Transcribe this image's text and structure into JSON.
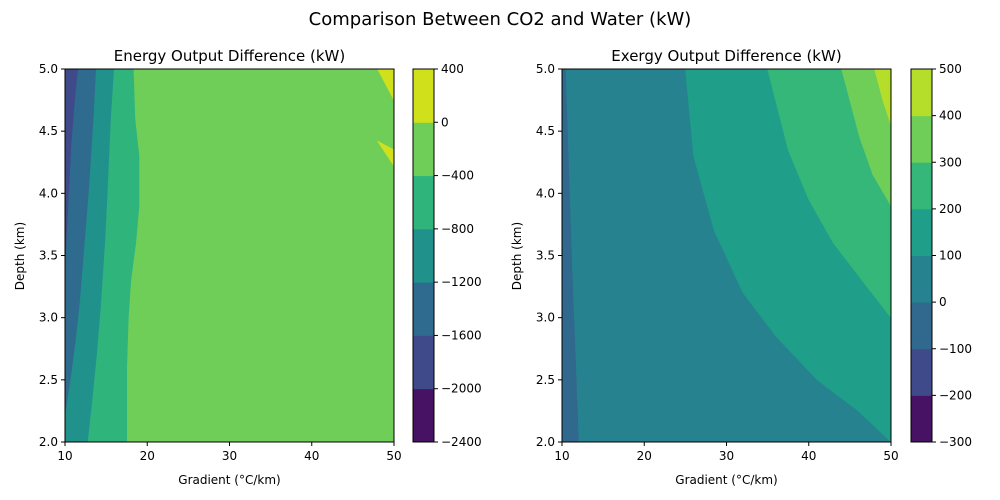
{
  "figure": {
    "suptitle": "Comparison Between CO2 and Water (kW)"
  },
  "chart_data": [
    {
      "type": "contour",
      "title": "Energy Output Difference (kW)",
      "xlabel": "Gradient (°C/km)",
      "ylabel": "Depth (km)",
      "xlim": [
        10,
        50
      ],
      "ylim": [
        2.0,
        5.0
      ],
      "x_ticks": [
        10,
        20,
        30,
        40,
        50
      ],
      "y_ticks": [
        "2.0",
        "2.5",
        "3.0",
        "3.5",
        "4.0",
        "4.5",
        "5.0"
      ],
      "colorbar": {
        "levels": [
          -2400,
          -2000,
          -1600,
          -1200,
          -800,
          -400,
          0,
          400
        ],
        "tick_labels": [
          "−2400",
          "−2000",
          "−1600",
          "−1200",
          "−800",
          "−400",
          "0",
          "400"
        ],
        "colors": [
          "#471164",
          "#3e4a89",
          "#2e6b8e",
          "#21918c",
          "#2fb47c",
          "#6ece58",
          "#d0e11c"
        ]
      },
      "regions": [
        {
          "range": [
            -2000,
            -1600
          ],
          "boundary": [
            [
              10,
              5.0
            ],
            [
              11.6,
              5.0
            ],
            [
              11.3,
              4.8
            ],
            [
              10.8,
              4.4
            ],
            [
              10.5,
              4.0
            ],
            [
              10.2,
              3.6
            ],
            [
              10,
              3.3
            ]
          ]
        },
        {
          "range": [
            -1600,
            -1200
          ],
          "boundary": [
            [
              11.6,
              5.0
            ],
            [
              13.8,
              5.0
            ],
            [
              13.5,
              4.6
            ],
            [
              12.9,
              4.0
            ],
            [
              12.3,
              3.5
            ],
            [
              11.8,
              3.1
            ],
            [
              11.3,
              2.8
            ],
            [
              10.7,
              2.5
            ],
            [
              10,
              2.2
            ],
            [
              10,
              3.3
            ],
            [
              10.2,
              3.6
            ],
            [
              10.5,
              4.0
            ],
            [
              10.8,
              4.4
            ],
            [
              11.3,
              4.8
            ]
          ]
        },
        {
          "range": [
            -1200,
            -800
          ],
          "boundary": [
            [
              13.8,
              5.0
            ],
            [
              16.0,
              5.0
            ],
            [
              15.6,
              4.6
            ],
            [
              15.2,
              4.0
            ],
            [
              14.9,
              3.6
            ],
            [
              14.4,
              3.1
            ],
            [
              13.9,
              2.7
            ],
            [
              13.3,
              2.3
            ],
            [
              12.8,
              2.0
            ],
            [
              10,
              2.0
            ],
            [
              10,
              2.2
            ],
            [
              10.7,
              2.5
            ],
            [
              11.3,
              2.8
            ],
            [
              11.8,
              3.1
            ],
            [
              12.3,
              3.5
            ],
            [
              12.9,
              4.0
            ],
            [
              13.5,
              4.6
            ]
          ]
        },
        {
          "range": [
            -800,
            -400
          ],
          "boundary": [
            [
              16.0,
              5.0
            ],
            [
              18.3,
              5.0
            ],
            [
              18.5,
              4.6
            ],
            [
              19.0,
              4.3
            ],
            [
              19.0,
              3.9
            ],
            [
              18.6,
              3.6
            ],
            [
              18.0,
              3.3
            ],
            [
              17.7,
              3.0
            ],
            [
              17.5,
              2.6
            ],
            [
              17.5,
              2.0
            ],
            [
              12.8,
              2.0
            ],
            [
              13.3,
              2.3
            ],
            [
              13.9,
              2.7
            ],
            [
              14.4,
              3.1
            ],
            [
              14.9,
              3.6
            ],
            [
              15.2,
              4.0
            ],
            [
              15.6,
              4.6
            ]
          ]
        },
        {
          "range": [
            0,
            400
          ],
          "boundary": [
            [
              48.0,
              5.0
            ],
            [
              50,
              5.0
            ],
            [
              50,
              4.75
            ],
            [
              49.2,
              4.85
            ]
          ]
        },
        {
          "range": [
            0,
            400
          ],
          "boundary": [
            [
              48.0,
              4.42
            ],
            [
              50,
              4.35
            ],
            [
              50,
              4.22
            ],
            [
              49.2,
              4.3
            ],
            [
              48.4,
              4.38
            ]
          ]
        }
      ]
    },
    {
      "type": "contour",
      "title": "Exergy Output Difference (kW)",
      "xlabel": "Gradient (°C/km)",
      "ylabel": "Depth (km)",
      "xlim": [
        10,
        50
      ],
      "ylim": [
        2.0,
        5.0
      ],
      "x_ticks": [
        10,
        20,
        30,
        40,
        50
      ],
      "y_ticks": [
        "2.0",
        "2.5",
        "3.0",
        "3.5",
        "4.0",
        "4.5",
        "5.0"
      ],
      "colorbar": {
        "levels": [
          -300,
          -200,
          -100,
          0,
          100,
          200,
          300,
          400,
          500
        ],
        "tick_labels": [
          "−300",
          "−200",
          "−100",
          "0",
          "100",
          "200",
          "300",
          "400",
          "500"
        ],
        "colors": [
          "#471164",
          "#3e4a89",
          "#31688e",
          "#26828e",
          "#1f9e89",
          "#35b779",
          "#6ece58",
          "#b5de2b"
        ]
      },
      "regions": [
        {
          "range": [
            -100,
            0
          ],
          "boundary": [
            [
              10,
              2.0
            ],
            [
              12.0,
              2.0
            ],
            [
              11.6,
              2.7
            ],
            [
              11.2,
              3.4
            ],
            [
              10.8,
              4.2
            ],
            [
              10.4,
              5.0
            ],
            [
              10,
              5.0
            ]
          ]
        },
        {
          "range": [
            100,
            200
          ],
          "boundary": [
            [
              25.0,
              5.0
            ],
            [
              50,
              5.0
            ],
            [
              50,
              2.0
            ],
            [
              46,
              2.25
            ],
            [
              41,
              2.5
            ],
            [
              36,
              2.85
            ],
            [
              32,
              3.2
            ],
            [
              28.5,
              3.7
            ],
            [
              26,
              4.3
            ]
          ]
        },
        {
          "range": [
            200,
            300
          ],
          "boundary": [
            [
              35.0,
              5.0
            ],
            [
              50,
              5.0
            ],
            [
              50,
              3.0
            ],
            [
              46.5,
              3.3
            ],
            [
              43,
              3.6
            ],
            [
              40,
              3.95
            ],
            [
              37.5,
              4.35
            ]
          ]
        },
        {
          "range": [
            300,
            400
          ],
          "boundary": [
            [
              44.0,
              5.0
            ],
            [
              50,
              5.0
            ],
            [
              50,
              3.9
            ],
            [
              47.8,
              4.15
            ],
            [
              46.2,
              4.45
            ]
          ]
        },
        {
          "range": [
            400,
            500
          ],
          "boundary": [
            [
              48.0,
              5.0
            ],
            [
              50,
              5.0
            ],
            [
              50,
              4.55
            ],
            [
              49.0,
              4.75
            ]
          ]
        }
      ]
    }
  ]
}
